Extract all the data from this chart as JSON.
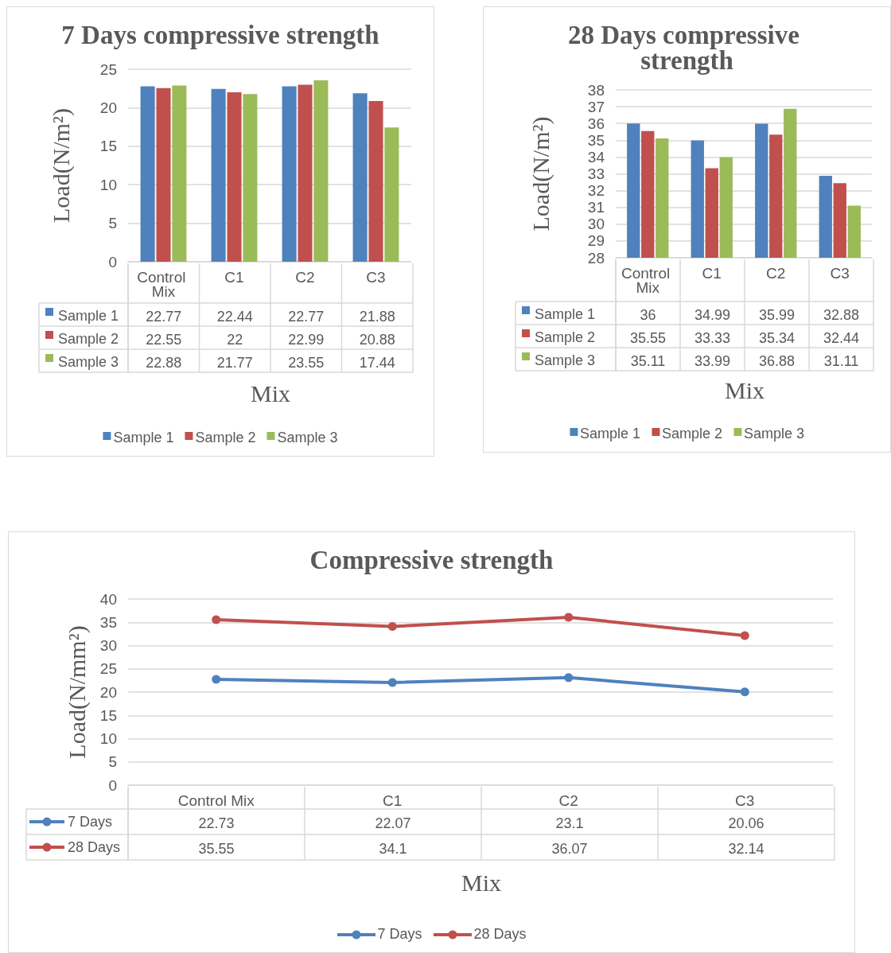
{
  "chart_data": [
    {
      "type": "bar",
      "title": "7 Days compressive strength",
      "xlabel": "Mix",
      "ylabel": "Load(N/m²)",
      "categories": [
        "Control Mix",
        "C1",
        "C2",
        "C3"
      ],
      "series": [
        {
          "name": "Sample 1",
          "color": "#4f81bd",
          "values": [
            22.77,
            22.44,
            22.77,
            21.88
          ]
        },
        {
          "name": "Sample 2",
          "color": "#c0504d",
          "values": [
            22.55,
            22,
            22.99,
            20.88
          ]
        },
        {
          "name": "Sample 3",
          "color": "#9bbb59",
          "values": [
            22.88,
            21.77,
            23.55,
            17.44
          ]
        }
      ],
      "ylim": [
        0,
        25
      ],
      "yticks": [
        0,
        5,
        10,
        15,
        20,
        25
      ],
      "grid": "y",
      "legend": "bottom",
      "data_labels": true
    },
    {
      "type": "bar",
      "title": "28 Days compressive strength",
      "xlabel": "Mix",
      "ylabel": "Load(N/m²)",
      "categories": [
        "Control Mix",
        "C1",
        "C2",
        "C3"
      ],
      "series": [
        {
          "name": "Sample 1",
          "color": "#4f81bd",
          "values": [
            36,
            34.99,
            35.99,
            32.88
          ]
        },
        {
          "name": "Sample 2",
          "color": "#c0504d",
          "values": [
            35.55,
            33.33,
            35.34,
            32.44
          ]
        },
        {
          "name": "Sample 3",
          "color": "#9bbb59",
          "values": [
            35.11,
            33.99,
            36.88,
            31.11
          ]
        }
      ],
      "ylim": [
        28,
        38
      ],
      "yticks": [
        28,
        29,
        30,
        31,
        32,
        33,
        34,
        35,
        36,
        37,
        38
      ],
      "grid": "y",
      "legend": "bottom",
      "data_labels": true
    },
    {
      "type": "line",
      "title": "Compressive strength",
      "xlabel": "Mix",
      "ylabel": "Load(N/mm²)",
      "categories": [
        "Control Mix",
        "C1",
        "C2",
        "C3"
      ],
      "series": [
        {
          "name": "7 Days",
          "color": "#4f81bd",
          "values": [
            22.73,
            22.07,
            23.1,
            20.06
          ]
        },
        {
          "name": "28 Days",
          "color": "#c0504d",
          "values": [
            35.55,
            34.1,
            36.07,
            32.14
          ]
        }
      ],
      "ylim": [
        0,
        40
      ],
      "yticks": [
        0,
        5,
        10,
        15,
        20,
        25,
        30,
        35,
        40
      ],
      "grid": "y",
      "legend": "bottom",
      "marker": "circle",
      "line_style": "solid",
      "data_labels": true
    }
  ]
}
